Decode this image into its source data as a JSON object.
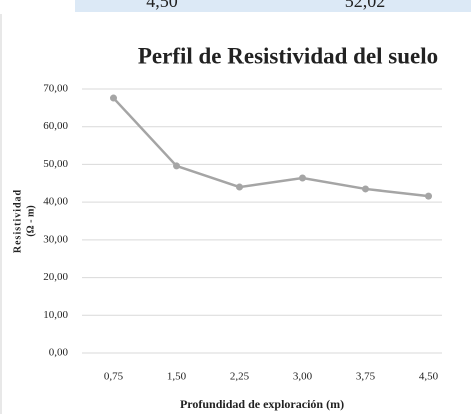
{
  "table": {
    "rows": [
      [
        "4,50",
        "52,02"
      ]
    ]
  },
  "chart_data": {
    "type": "line",
    "title": "Perfil de Resistividad del suelo",
    "y_label": [
      "Resistividad",
      "(Ω - m)"
    ],
    "x_label": "Profundidad de exploración (m)",
    "categories": [
      "0,75",
      "1,50",
      "2,25",
      "3,00",
      "3,75",
      "4,50"
    ],
    "series": [
      {
        "name": "Resistividad",
        "color": "#a5a5a5",
        "values": [
          67.6,
          49.6,
          44.0,
          46.4,
          43.5,
          41.6
        ]
      }
    ],
    "ylim": [
      0,
      70
    ],
    "yticks": [
      {
        "value": 0,
        "label": "0,00"
      },
      {
        "value": 10,
        "label": "10,00"
      },
      {
        "value": 20,
        "label": "20,00"
      },
      {
        "value": 30,
        "label": "30,00"
      },
      {
        "value": 40,
        "label": "40,00"
      },
      {
        "value": 50,
        "label": "50,00"
      },
      {
        "value": 60,
        "label": "60,00"
      },
      {
        "value": 70,
        "label": "70,00"
      }
    ],
    "grid": true
  }
}
